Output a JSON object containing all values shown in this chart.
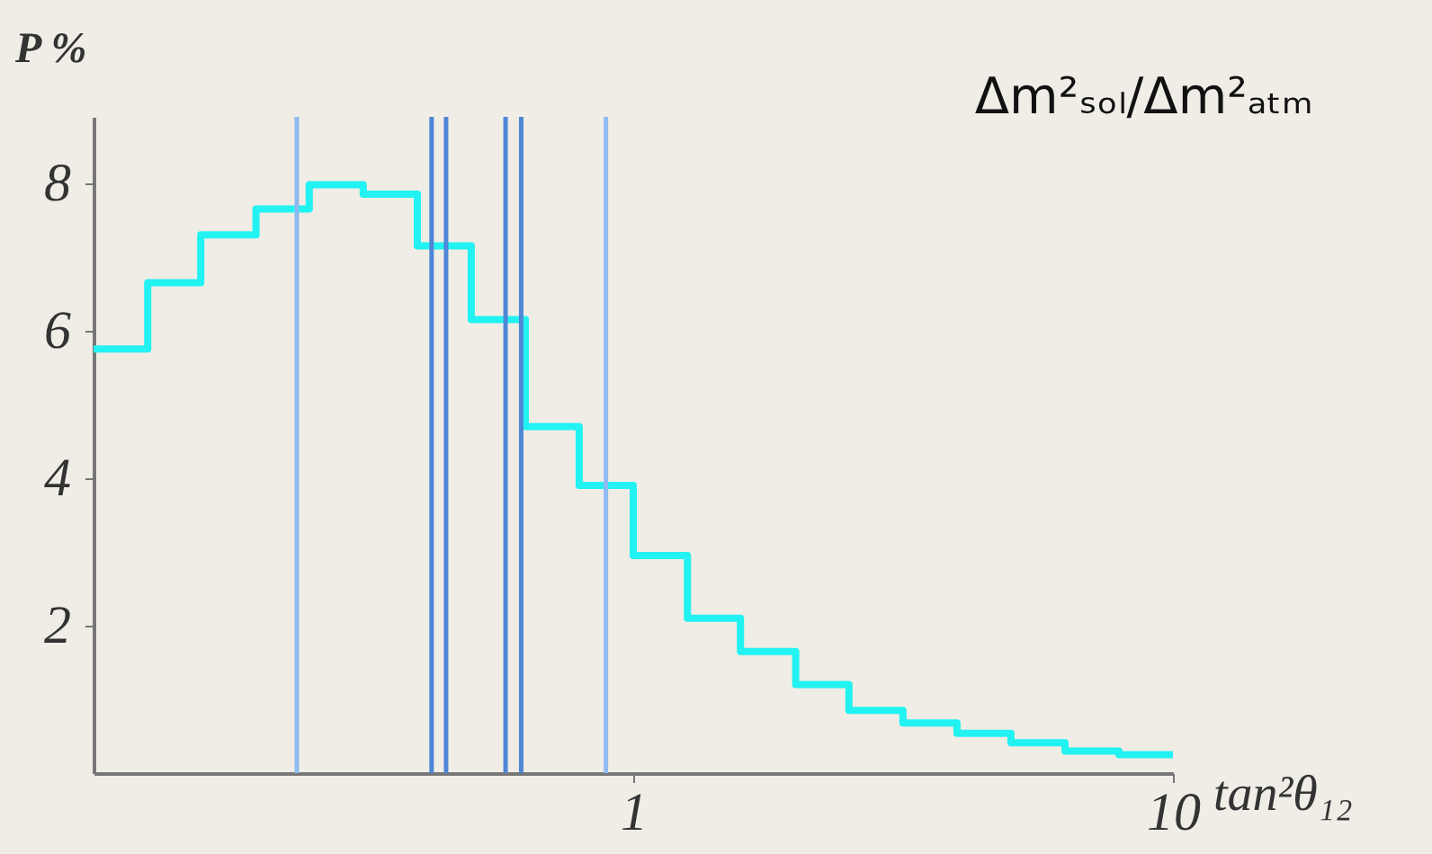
{
  "chart_data": {
    "type": "histogram",
    "title": "Δm²ₛₒₗ/Δm²ₐₜₘ",
    "xlabel": "tan²θ₁₂",
    "ylabel": "P %",
    "log": "x",
    "grid": false,
    "color": "#22f2f2",
    "bins": [
      0.1,
      0.126,
      0.158,
      0.2,
      0.251,
      0.316,
      0.398,
      0.501,
      0.631,
      0.794,
      1,
      1.26,
      1.58,
      2,
      2.51,
      3.16,
      3.98,
      5.01,
      6.31,
      7.94,
      10
    ],
    "values": [
      5.75,
      6.65,
      7.3,
      7.65,
      7.98,
      7.85,
      7.15,
      6.15,
      4.7,
      3.9,
      2.95,
      2.1,
      1.65,
      1.2,
      0.85,
      0.68,
      0.54,
      0.41,
      0.3,
      0.25
    ],
    "xlim": [
      0.1,
      10
    ],
    "ylim": [
      0,
      8.9
    ],
    "xticks": [
      1,
      10
    ],
    "yticks": [
      2,
      4,
      6,
      8
    ],
    "ref_lines": [
      {
        "axis": "x",
        "value": 0.238,
        "color": "#8fbaf0"
      },
      {
        "axis": "x",
        "value": 0.423,
        "color": "#4f86d6"
      },
      {
        "axis": "x",
        "value": 0.45,
        "color": "#4f86d6"
      },
      {
        "axis": "x",
        "value": 0.58,
        "color": "#4f86d6"
      },
      {
        "axis": "x",
        "value": 0.62,
        "color": "#4f86d6"
      },
      {
        "axis": "x",
        "value": 0.89,
        "color": "#8fbaf0"
      }
    ]
  }
}
